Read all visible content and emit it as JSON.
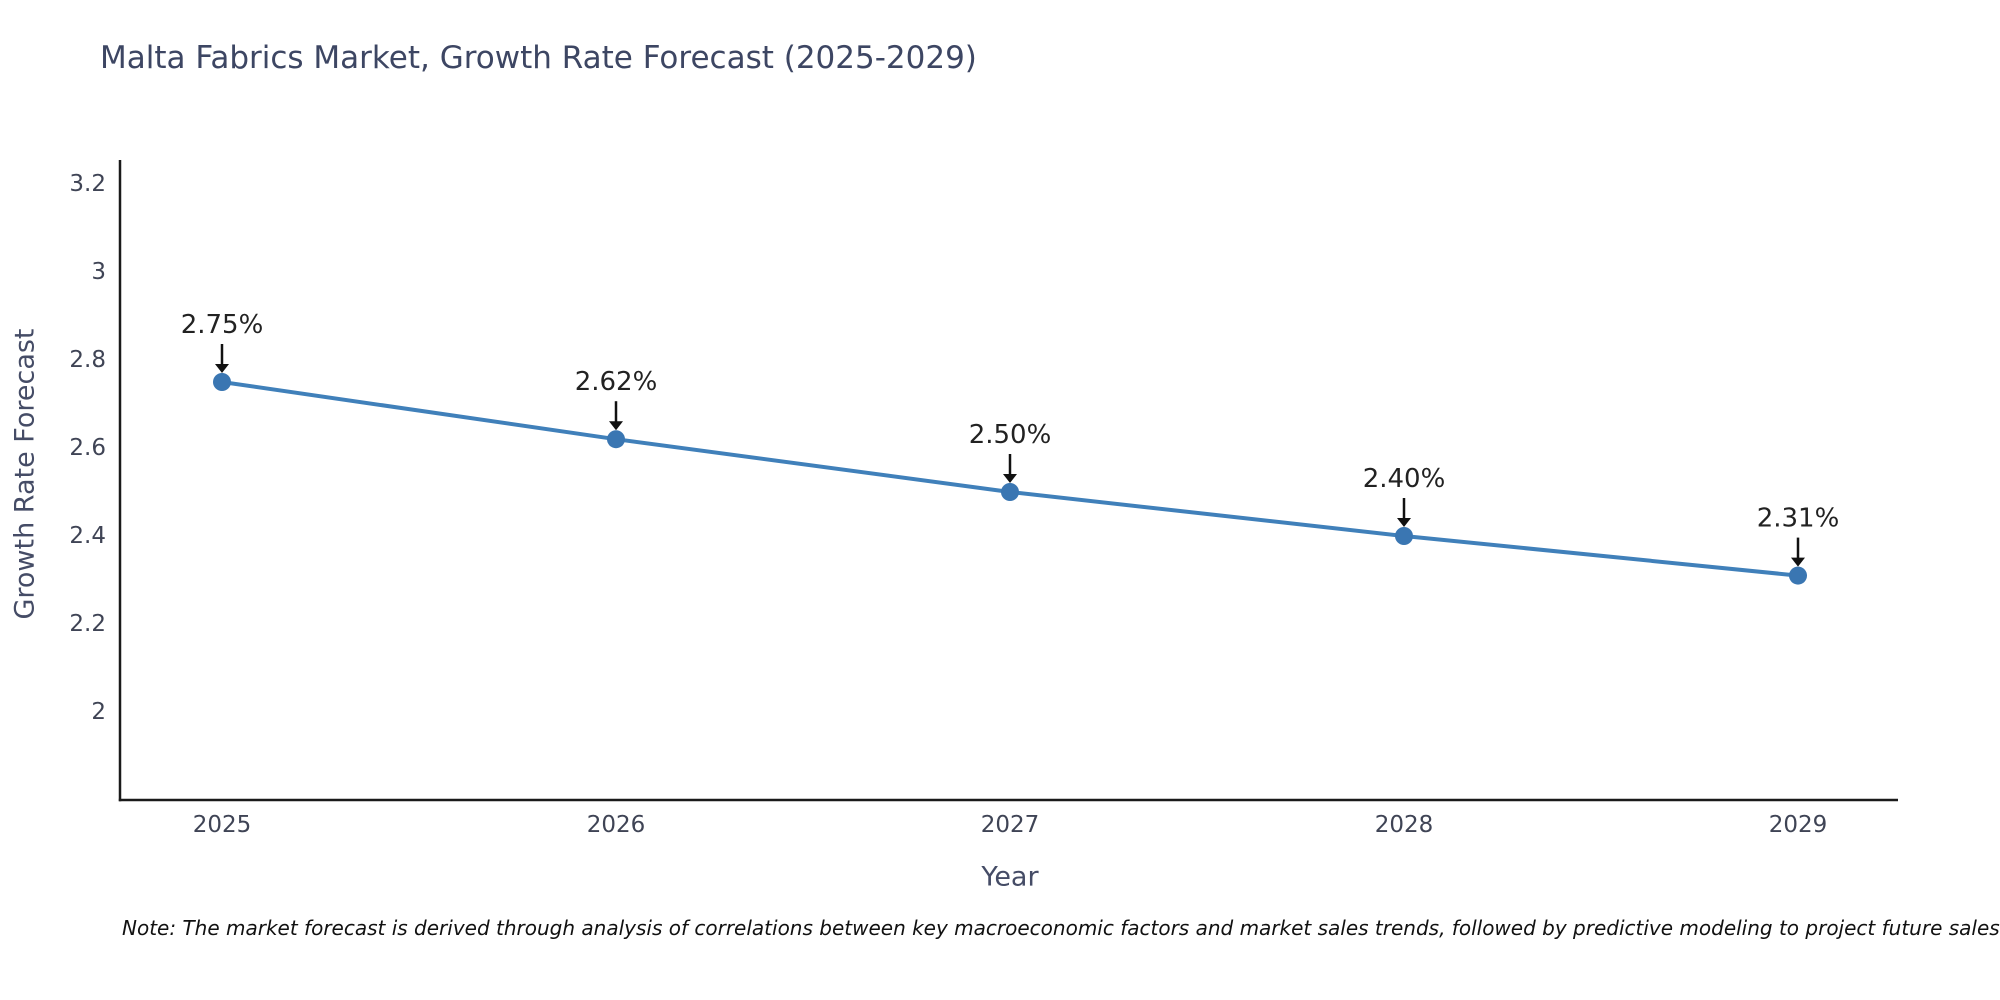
{
  "chart_data": {
    "type": "line",
    "title": "Malta Fabrics Market, Growth Rate Forecast (2025-2029)",
    "xlabel": "Year",
    "ylabel": "Growth Rate Forecast",
    "x": [
      2025,
      2026,
      2027,
      2028,
      2029
    ],
    "x_labels": [
      "2025",
      "2026",
      "2027",
      "2028",
      "2029"
    ],
    "series": [
      {
        "name": "Growth Rate Forecast",
        "values": [
          2.75,
          2.62,
          2.5,
          2.4,
          2.31
        ]
      }
    ],
    "point_labels": [
      "2.75%",
      "2.62%",
      "2.50%",
      "2.40%",
      "2.31%"
    ],
    "yticks": [
      3.2,
      3,
      2.8,
      2.6,
      2.4,
      2.2,
      2
    ],
    "ytick_labels": [
      "3.2",
      "3",
      "2.8",
      "2.6",
      "2.4",
      "2.2",
      "2"
    ],
    "ylim": [
      1.8,
      3.25
    ],
    "grid": false,
    "legend": false,
    "note": "Note: The market forecast is derived through analysis of correlations between key macroeconomic factors and market sales trends, followed by predictive modeling to project future sales",
    "colors": {
      "line": "#4080ba",
      "marker": "#3a76b2",
      "axis_line": "#1a1a1a",
      "tick_text": "#3f4455",
      "axis_title_text": "#454c66",
      "chart_title_text": "#3d4663",
      "annotation_text": "#222222",
      "arrow": "#111111",
      "note_text": "#111111",
      "background": "#ffffff"
    }
  }
}
